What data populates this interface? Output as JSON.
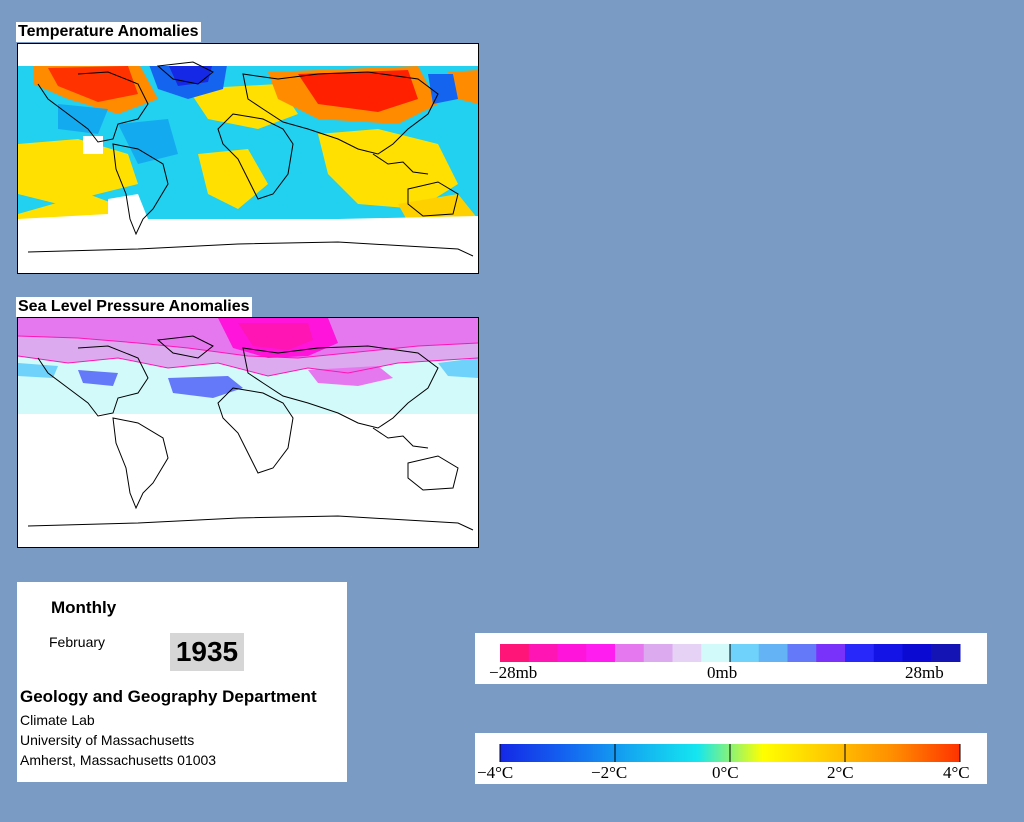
{
  "temperature_panel": {
    "title": "Temperature Anomalies"
  },
  "pressure_panel": {
    "title": "Sea Level Pressure Anomalies"
  },
  "info": {
    "period": "Monthly",
    "month": "February",
    "year": "1935",
    "department": "Geology and Geography Department",
    "address_lines": [
      "Climate Lab",
      "University of Massachusetts",
      "Amherst, Massachusetts 01003"
    ]
  },
  "pressure_legend": {
    "labels": [
      "−28mb",
      "0mb",
      "28mb"
    ],
    "colors": [
      "#ff1478",
      "#ff14b4",
      "#ff14dc",
      "#ff1eef",
      "#e678ef",
      "#dcaaef",
      "#e6d2f5",
      "#d2fafa",
      "#6ed2fa",
      "#64b4f5",
      "#6478fa",
      "#7832fa",
      "#2828fa",
      "#1414e6",
      "#0a0ad2",
      "#1414b4"
    ]
  },
  "temperature_legend": {
    "labels": [
      "−4°C",
      "−2°C",
      "0°C",
      "2°C",
      "4°C"
    ],
    "gradient": [
      "#1428e6",
      "#1464f0",
      "#14aaf0",
      "#14e6f0",
      "#ffff00",
      "#ffc800",
      "#ff8c00",
      "#ff3200"
    ]
  },
  "colors": {
    "background": "#7a9cc4",
    "panel": "#ffffff"
  }
}
